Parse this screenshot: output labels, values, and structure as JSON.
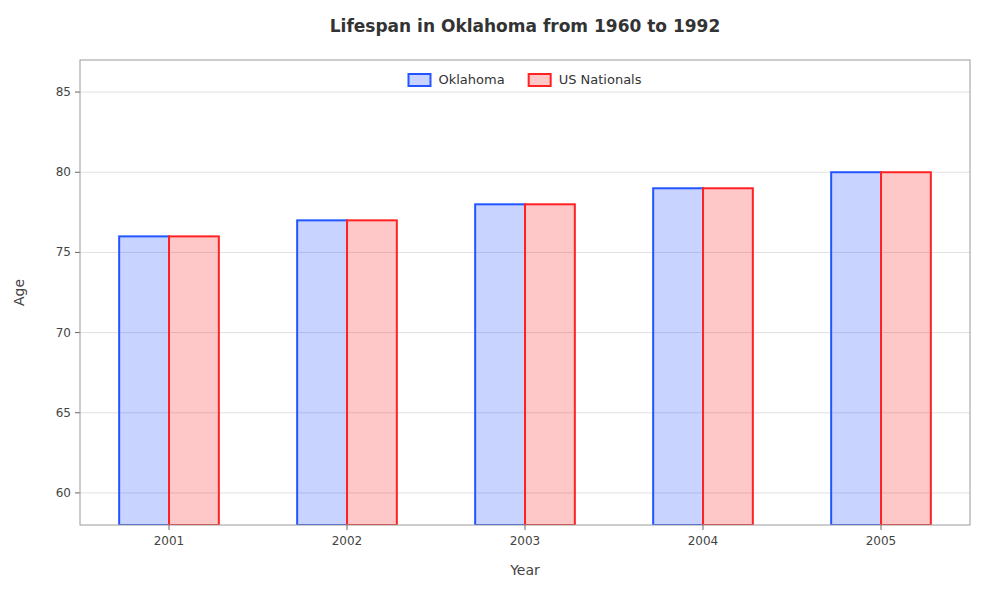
{
  "chart_data": {
    "type": "bar",
    "title": "Lifespan in Oklahoma from 1960 to 1992",
    "xlabel": "Year",
    "ylabel": "Age",
    "categories": [
      "2001",
      "2002",
      "2003",
      "2004",
      "2005"
    ],
    "series": [
      {
        "name": "Oklahoma",
        "color": "#2255ff",
        "values": [
          76,
          77,
          78,
          79,
          80
        ]
      },
      {
        "name": "US Nationals",
        "color": "#ff2222",
        "values": [
          76,
          77,
          78,
          79,
          80
        ]
      }
    ],
    "ylim": [
      58,
      87
    ],
    "yticks": [
      60,
      65,
      70,
      75,
      80,
      85
    ],
    "grid": true,
    "legend": "top"
  }
}
